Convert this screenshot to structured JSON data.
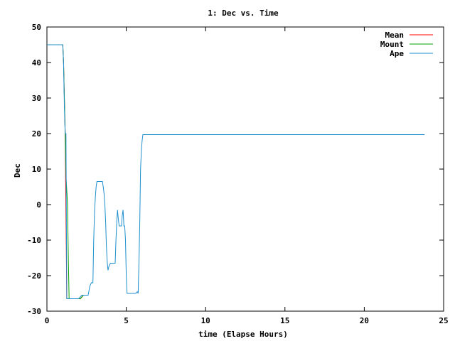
{
  "chart_data": {
    "type": "line",
    "title": "1: Dec vs. Time",
    "xlabel": "time (Elapse Hours)",
    "ylabel": "Dec",
    "xlim": [
      0,
      25
    ],
    "ylim": [
      -30,
      50
    ],
    "xticks": [
      0,
      5,
      10,
      15,
      20,
      25
    ],
    "yticks": [
      -30,
      -20,
      -10,
      0,
      10,
      20,
      30,
      40,
      50
    ],
    "grid": false,
    "legend_position": "top-right",
    "series": [
      {
        "name": "Mean",
        "color": "#ff0000",
        "points": [
          [
            0,
            45
          ],
          [
            1.0,
            45
          ],
          [
            1.05,
            40
          ],
          [
            1.15,
            20
          ],
          [
            1.25,
            -26.5
          ],
          [
            2.1,
            -26.5
          ],
          [
            2.3,
            -25.5
          ],
          [
            2.6,
            -25.5
          ]
        ]
      },
      {
        "name": "Mount",
        "color": "#00a000",
        "points": [
          [
            0,
            45
          ],
          [
            1.0,
            45
          ],
          [
            1.05,
            40
          ],
          [
            1.15,
            20
          ],
          [
            1.2,
            8
          ],
          [
            1.3,
            0
          ],
          [
            1.35,
            -15
          ],
          [
            1.4,
            -26.5
          ],
          [
            2.1,
            -26.5
          ],
          [
            2.3,
            -25.5
          ],
          [
            2.6,
            -25.5
          ]
        ]
      },
      {
        "name": "Ape",
        "color": "#1f8fcf",
        "points": [
          [
            0,
            45
          ],
          [
            1.0,
            45
          ],
          [
            1.05,
            40
          ],
          [
            1.1,
            27
          ],
          [
            1.15,
            20
          ],
          [
            1.2,
            20
          ],
          [
            1.25,
            -26.5
          ],
          [
            2.0,
            -26.5
          ],
          [
            2.2,
            -25.5
          ],
          [
            2.6,
            -25.5
          ],
          [
            2.7,
            -23
          ],
          [
            2.8,
            -22
          ],
          [
            2.9,
            -22
          ],
          [
            2.95,
            -10
          ],
          [
            3.0,
            -2
          ],
          [
            3.05,
            2
          ],
          [
            3.1,
            5
          ],
          [
            3.15,
            6.5
          ],
          [
            3.5,
            6.5
          ],
          [
            3.55,
            5
          ],
          [
            3.6,
            3
          ],
          [
            3.65,
            0
          ],
          [
            3.7,
            -5
          ],
          [
            3.75,
            -12
          ],
          [
            3.8,
            -16
          ],
          [
            3.85,
            -18.5
          ],
          [
            3.9,
            -17.5
          ],
          [
            4.0,
            -16.5
          ],
          [
            4.3,
            -16.5
          ],
          [
            4.35,
            -10
          ],
          [
            4.4,
            -5
          ],
          [
            4.45,
            -1.5
          ],
          [
            4.5,
            -4
          ],
          [
            4.55,
            -6
          ],
          [
            4.7,
            -6
          ],
          [
            4.75,
            -3
          ],
          [
            4.8,
            -1.5
          ],
          [
            4.85,
            -6
          ],
          [
            4.9,
            -6
          ],
          [
            4.95,
            -10
          ],
          [
            5.0,
            -20
          ],
          [
            5.05,
            -25
          ],
          [
            5.6,
            -25
          ],
          [
            5.7,
            -24.5
          ],
          [
            5.75,
            -25
          ],
          [
            5.8,
            -16
          ],
          [
            5.85,
            -5
          ],
          [
            5.9,
            10
          ],
          [
            5.95,
            15
          ],
          [
            6.0,
            18
          ],
          [
            6.05,
            19.7
          ],
          [
            23.8,
            19.7
          ]
        ]
      }
    ]
  }
}
